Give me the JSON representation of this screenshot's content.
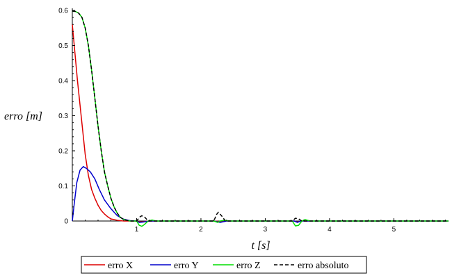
{
  "chart_data": {
    "type": "line",
    "title": "",
    "xlabel": "t [s]",
    "ylabel": "erro [m]",
    "xlim": [
      0,
      5.85
    ],
    "ylim": [
      0,
      0.6
    ],
    "x_ticks": [
      "1",
      "2",
      "3",
      "4",
      "5"
    ],
    "y_ticks": [
      "0",
      "0.1",
      "0.2",
      "0.3",
      "0.4",
      "0.5",
      "0.6"
    ],
    "grid": false,
    "legend_position": "bottom",
    "series": [
      {
        "name": "erro X",
        "color": "#dd0000",
        "dash": "solid",
        "points": [
          [
            0,
            0.56
          ],
          [
            0.04,
            0.48
          ],
          [
            0.08,
            0.4
          ],
          [
            0.12,
            0.33
          ],
          [
            0.16,
            0.26
          ],
          [
            0.2,
            0.19
          ],
          [
            0.25,
            0.13
          ],
          [
            0.3,
            0.09
          ],
          [
            0.35,
            0.065
          ],
          [
            0.4,
            0.045
          ],
          [
            0.45,
            0.03
          ],
          [
            0.5,
            0.02
          ],
          [
            0.55,
            0.012
          ],
          [
            0.6,
            0.006
          ],
          [
            0.7,
            0.002
          ],
          [
            0.8,
            0.0
          ],
          [
            1.0,
            0.0
          ],
          [
            1.04,
            -0.003
          ],
          [
            1.1,
            -0.002
          ],
          [
            1.2,
            0.0
          ],
          [
            2.2,
            0.0
          ],
          [
            2.3,
            -0.002
          ],
          [
            2.4,
            0.0
          ],
          [
            3.45,
            0.0
          ],
          [
            3.5,
            -0.003
          ],
          [
            3.55,
            0.0
          ],
          [
            5.85,
            0.0
          ]
        ]
      },
      {
        "name": "erro Y",
        "color": "#0000cc",
        "dash": "solid",
        "points": [
          [
            0,
            0.0
          ],
          [
            0.03,
            0.05
          ],
          [
            0.07,
            0.11
          ],
          [
            0.12,
            0.145
          ],
          [
            0.17,
            0.155
          ],
          [
            0.22,
            0.15
          ],
          [
            0.28,
            0.14
          ],
          [
            0.35,
            0.12
          ],
          [
            0.42,
            0.09
          ],
          [
            0.5,
            0.06
          ],
          [
            0.6,
            0.035
          ],
          [
            0.7,
            0.015
          ],
          [
            0.8,
            0.005
          ],
          [
            0.9,
            0.001
          ],
          [
            1.0,
            0.0
          ],
          [
            1.04,
            -0.004
          ],
          [
            1.1,
            -0.003
          ],
          [
            1.2,
            0.0
          ],
          [
            2.2,
            0.0
          ],
          [
            2.3,
            -0.004
          ],
          [
            2.4,
            0.0
          ],
          [
            3.45,
            0.0
          ],
          [
            3.5,
            -0.004
          ],
          [
            3.55,
            0.0
          ],
          [
            5.85,
            0.0
          ]
        ]
      },
      {
        "name": "erro Z",
        "color": "#00dd00",
        "dash": "solid",
        "points": [
          [
            0,
            0.598
          ],
          [
            0.05,
            0.597
          ],
          [
            0.1,
            0.592
          ],
          [
            0.15,
            0.58
          ],
          [
            0.2,
            0.55
          ],
          [
            0.25,
            0.5
          ],
          [
            0.3,
            0.43
          ],
          [
            0.35,
            0.35
          ],
          [
            0.4,
            0.27
          ],
          [
            0.45,
            0.2
          ],
          [
            0.5,
            0.14
          ],
          [
            0.55,
            0.1
          ],
          [
            0.6,
            0.065
          ],
          [
            0.65,
            0.04
          ],
          [
            0.7,
            0.022
          ],
          [
            0.75,
            0.01
          ],
          [
            0.8,
            0.004
          ],
          [
            0.9,
            0.0
          ],
          [
            1.0,
            0.0
          ],
          [
            1.04,
            -0.012
          ],
          [
            1.08,
            -0.015
          ],
          [
            1.12,
            -0.01
          ],
          [
            1.18,
            0.0
          ],
          [
            1.24,
            0.003
          ],
          [
            1.3,
            0.0
          ],
          [
            2.2,
            0.0
          ],
          [
            2.26,
            -0.004
          ],
          [
            2.3,
            0.0
          ],
          [
            2.36,
            0.002
          ],
          [
            2.45,
            0.0
          ],
          [
            3.42,
            0.0
          ],
          [
            3.47,
            -0.014
          ],
          [
            3.52,
            -0.012
          ],
          [
            3.57,
            0.0
          ],
          [
            3.62,
            0.004
          ],
          [
            3.7,
            0.0
          ],
          [
            5.85,
            0.0
          ]
        ]
      },
      {
        "name": "erro absoluto",
        "color": "#000000",
        "dash": "dashed",
        "points": [
          [
            0,
            0.598
          ],
          [
            0.05,
            0.597
          ],
          [
            0.1,
            0.592
          ],
          [
            0.15,
            0.58
          ],
          [
            0.2,
            0.55
          ],
          [
            0.25,
            0.5
          ],
          [
            0.3,
            0.43
          ],
          [
            0.35,
            0.35
          ],
          [
            0.4,
            0.27
          ],
          [
            0.45,
            0.2
          ],
          [
            0.5,
            0.14
          ],
          [
            0.55,
            0.1
          ],
          [
            0.6,
            0.065
          ],
          [
            0.65,
            0.04
          ],
          [
            0.7,
            0.022
          ],
          [
            0.75,
            0.01
          ],
          [
            0.8,
            0.004
          ],
          [
            0.9,
            0.0
          ],
          [
            1.0,
            0.0
          ],
          [
            1.04,
            0.01
          ],
          [
            1.08,
            0.015
          ],
          [
            1.12,
            0.012
          ],
          [
            1.18,
            0.0
          ],
          [
            2.2,
            0.0
          ],
          [
            2.24,
            0.018
          ],
          [
            2.27,
            0.025
          ],
          [
            2.32,
            0.015
          ],
          [
            2.38,
            0.0
          ],
          [
            3.42,
            0.0
          ],
          [
            3.47,
            0.008
          ],
          [
            3.52,
            0.006
          ],
          [
            3.57,
            0.0
          ],
          [
            5.85,
            0.0
          ]
        ]
      }
    ]
  }
}
